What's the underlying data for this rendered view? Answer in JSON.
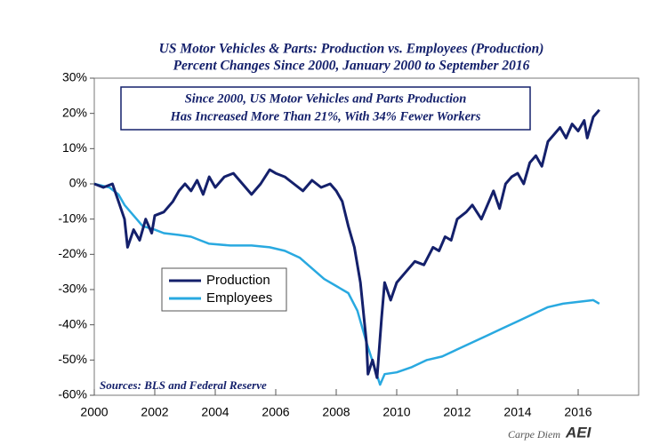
{
  "chart_data": {
    "type": "line",
    "title": "US Motor Vehicles & Parts: Production vs. Employees (Production)",
    "subtitle": "Percent Changes Since 2000, January 2000 to September 2016",
    "annotation": [
      "Since 2000, US Motor Vehicles and Parts Production",
      "Has Increased More Than 21%, With 34% Fewer Workers"
    ],
    "source": "Sources: BLS and Federal Reserve",
    "credit": "Carpe Diem",
    "logo": "AEI",
    "legend": "left",
    "xlim": [
      2000,
      2018
    ],
    "xticks": [
      2000,
      2002,
      2004,
      2006,
      2008,
      2010,
      2012,
      2014,
      2016
    ],
    "ylim": [
      -60,
      30
    ],
    "yticks": [
      {
        "value": -60,
        "label": "-60%"
      },
      {
        "value": -50,
        "label": "-50%"
      },
      {
        "value": -40,
        "label": "-40%"
      },
      {
        "value": -30,
        "label": "-30%"
      },
      {
        "value": -20,
        "label": "-20%"
      },
      {
        "value": -10,
        "label": "-10%"
      },
      {
        "value": 0,
        "label": "0%"
      },
      {
        "value": 10,
        "label": "10%"
      },
      {
        "value": 20,
        "label": "20%"
      },
      {
        "value": 30,
        "label": "30%"
      }
    ],
    "series": [
      {
        "name": "Production",
        "color": "#14206b",
        "x": [
          2000.0,
          2000.3,
          2000.6,
          2000.8,
          2001.0,
          2001.1,
          2001.3,
          2001.5,
          2001.7,
          2001.9,
          2002.0,
          2002.3,
          2002.6,
          2002.8,
          2003.0,
          2003.2,
          2003.4,
          2003.6,
          2003.8,
          2004.0,
          2004.3,
          2004.6,
          2004.9,
          2005.2,
          2005.5,
          2005.8,
          2006.0,
          2006.3,
          2006.6,
          2006.9,
          2007.2,
          2007.5,
          2007.8,
          2008.0,
          2008.2,
          2008.4,
          2008.6,
          2008.8,
          2009.0,
          2009.05,
          2009.2,
          2009.35,
          2009.5,
          2009.6,
          2009.8,
          2010.0,
          2010.3,
          2010.6,
          2010.9,
          2011.2,
          2011.4,
          2011.6,
          2011.8,
          2012.0,
          2012.3,
          2012.5,
          2012.8,
          2013.0,
          2013.2,
          2013.4,
          2013.6,
          2013.8,
          2014.0,
          2014.2,
          2014.4,
          2014.6,
          2014.8,
          2015.0,
          2015.2,
          2015.4,
          2015.6,
          2015.8,
          2016.0,
          2016.2,
          2016.3,
          2016.5,
          2016.7
        ],
        "values": [
          0,
          -1,
          0,
          -5,
          -10,
          -18,
          -13,
          -16,
          -10,
          -14,
          -9,
          -8,
          -5,
          -2,
          0,
          -2,
          1,
          -3,
          2,
          -1,
          2,
          3,
          0,
          -3,
          0,
          4,
          3,
          2,
          0,
          -2,
          1,
          -1,
          0,
          -2,
          -5,
          -12,
          -18,
          -28,
          -45,
          -54,
          -50,
          -55,
          -38,
          -28,
          -33,
          -28,
          -25,
          -22,
          -23,
          -18,
          -19,
          -15,
          -16,
          -10,
          -8,
          -6,
          -10,
          -6,
          -2,
          -7,
          0,
          2,
          3,
          0,
          6,
          8,
          5,
          12,
          14,
          16,
          13,
          17,
          15,
          18,
          13,
          19,
          21
        ]
      },
      {
        "name": "Employees",
        "color": "#29a9e0",
        "x": [
          2000.0,
          2000.5,
          2000.8,
          2001.0,
          2001.3,
          2001.6,
          2002.0,
          2002.3,
          2002.8,
          2003.2,
          2003.5,
          2003.8,
          2004.5,
          2005.2,
          2005.8,
          2006.3,
          2006.8,
          2007.2,
          2007.6,
          2008.0,
          2008.4,
          2008.7,
          2009.0,
          2009.3,
          2009.45,
          2009.6,
          2010.0,
          2010.5,
          2011.0,
          2011.5,
          2012.0,
          2012.5,
          2013.0,
          2013.5,
          2014.0,
          2014.5,
          2015.0,
          2015.5,
          2016.0,
          2016.5,
          2016.7
        ],
        "values": [
          0,
          -1,
          -3,
          -6,
          -9,
          -12,
          -13,
          -14,
          -14.5,
          -15,
          -16,
          -17,
          -17.5,
          -17.5,
          -18,
          -19,
          -21,
          -24,
          -27,
          -29,
          -31,
          -36,
          -45,
          -53,
          -57,
          -54,
          -53.5,
          -52,
          -50,
          -49,
          -47,
          -45,
          -43,
          -41,
          -39,
          -37,
          -35,
          -34,
          -33.5,
          -33,
          -34
        ]
      }
    ]
  }
}
